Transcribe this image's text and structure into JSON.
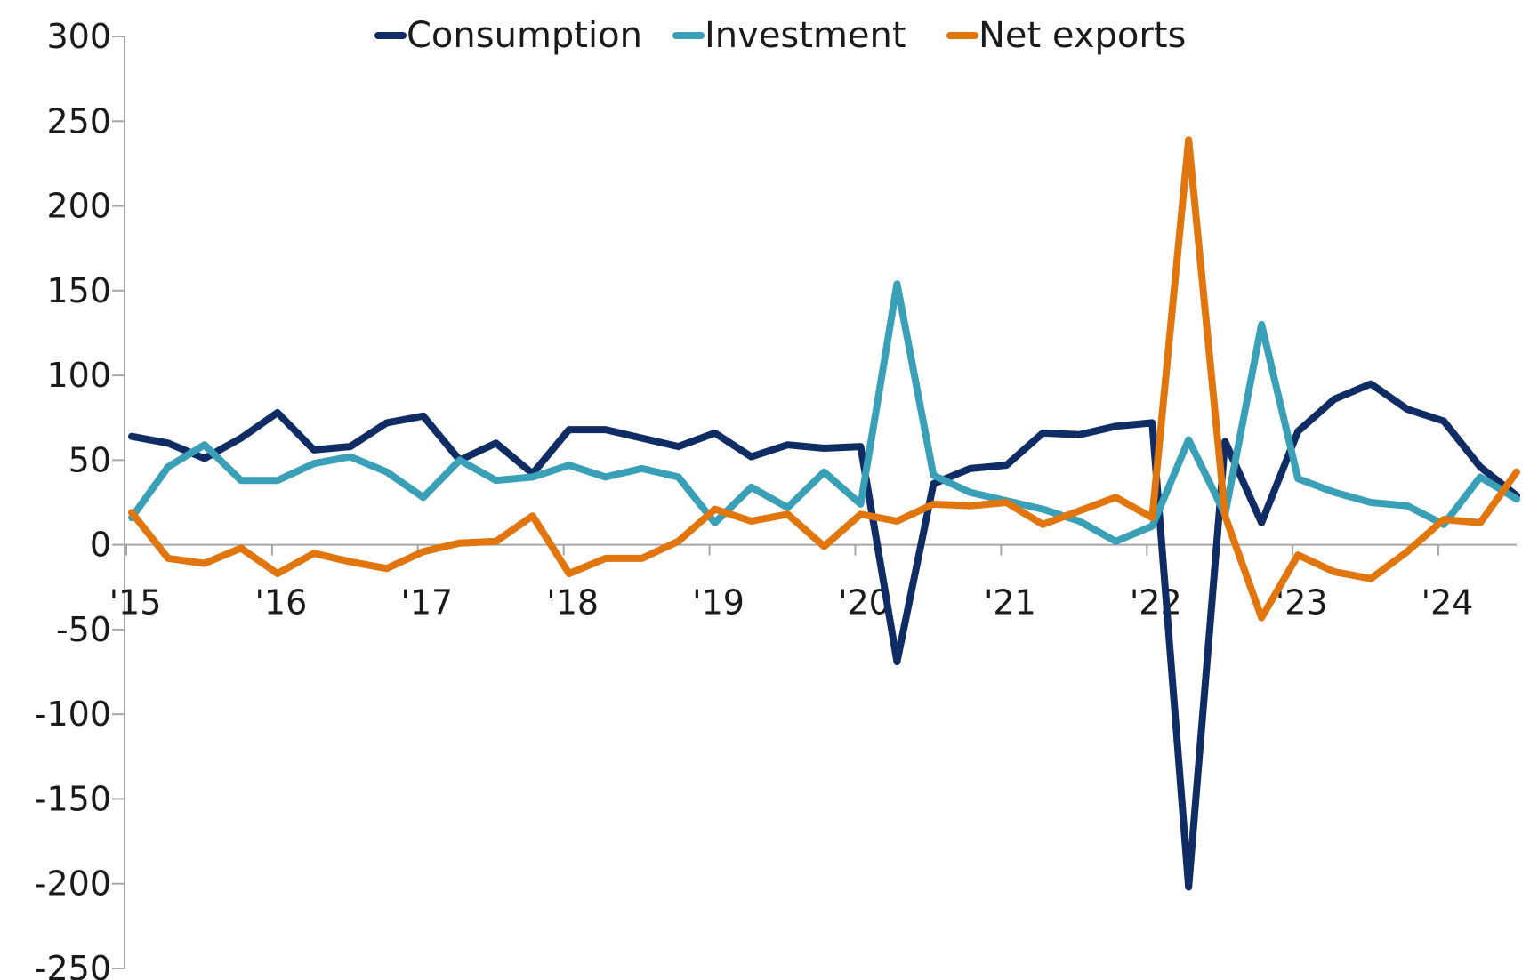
{
  "chart_data": {
    "type": "line",
    "title": "",
    "xlabel": "",
    "ylabel": "",
    "ylim": [
      -250,
      300
    ],
    "yticks": [
      300,
      250,
      200,
      150,
      100,
      50,
      0,
      -50,
      -100,
      -150,
      -200,
      -250
    ],
    "ytick_labels": [
      "300",
      "250",
      "200",
      "150",
      "100",
      "50",
      "0",
      "-50",
      "-100",
      "-150",
      "-200",
      "-250"
    ],
    "xlim": [
      0,
      39
    ],
    "x_tick_labels": [
      "'15",
      "'16",
      "'17",
      "'18",
      "'19",
      "'20",
      "'21",
      "'22",
      "'23",
      "'24"
    ],
    "x_tick_positions": [
      0,
      4,
      8,
      12,
      16,
      20,
      24,
      28,
      32,
      36
    ],
    "grid": false,
    "legend_position": "top",
    "series": [
      {
        "name": "Consumption",
        "color": "#0f2d64",
        "values": [
          64,
          60,
          51,
          63,
          78,
          56,
          58,
          72,
          76,
          50,
          60,
          42,
          68,
          68,
          63,
          58,
          66,
          52,
          59,
          57,
          58,
          -69,
          36,
          45,
          47,
          66,
          65,
          70,
          72,
          -202,
          61,
          13,
          67,
          86,
          95,
          80,
          73,
          46,
          29
        ]
      },
      {
        "name": "Investment",
        "color": "#3aa0b7",
        "values": [
          16,
          46,
          59,
          38,
          38,
          48,
          52,
          43,
          28,
          50,
          38,
          40,
          47,
          40,
          45,
          40,
          13,
          34,
          22,
          43,
          24,
          154,
          41,
          31,
          26,
          21,
          14,
          2,
          11,
          62,
          18,
          130,
          39,
          31,
          25,
          23,
          12,
          40,
          27
        ]
      },
      {
        "name": "Net exports",
        "color": "#e1760e",
        "values": [
          19,
          -8,
          -11,
          -2,
          -17,
          -5,
          -10,
          -14,
          -4,
          1,
          2,
          17,
          -17,
          -8,
          -8,
          2,
          21,
          14,
          18,
          -1,
          18,
          14,
          24,
          23,
          25,
          12,
          20,
          28,
          16,
          239,
          17,
          -43,
          -6,
          -16,
          -20,
          -4,
          15,
          13,
          43
        ]
      }
    ]
  }
}
